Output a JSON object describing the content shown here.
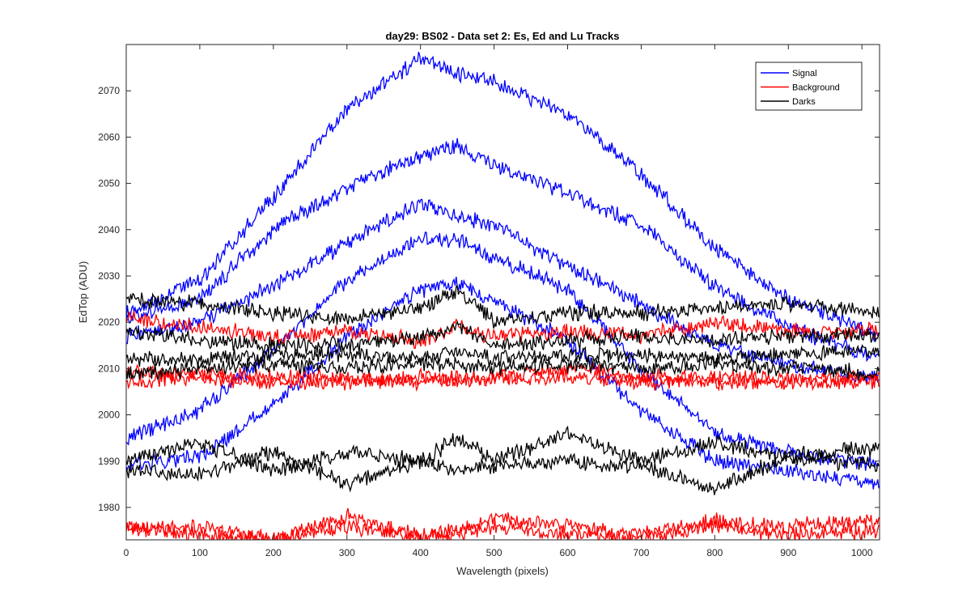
{
  "chart_data": {
    "type": "line",
    "title": "day29: BS02 - Data set 2: Es, Ed and Lu Tracks",
    "xlabel": "Wavelength (pixels)",
    "ylabel": "EdTop (ADU)",
    "xlim": [
      0,
      1024
    ],
    "ylim": [
      1973,
      2080
    ],
    "xticks": [
      0,
      100,
      200,
      300,
      400,
      500,
      600,
      700,
      800,
      900,
      1000
    ],
    "yticks": [
      1980,
      1990,
      2000,
      2010,
      2020,
      2030,
      2040,
      2050,
      2060,
      2070
    ],
    "grid": false,
    "legend_position": "top-right",
    "legend": [
      {
        "name": "Signal",
        "color": "#0000ff"
      },
      {
        "name": "Background",
        "color": "#ff0000"
      },
      {
        "name": "Darks",
        "color": "#000000"
      }
    ],
    "x": [
      0,
      100,
      200,
      300,
      400,
      450,
      500,
      600,
      700,
      800,
      900,
      1024
    ],
    "series": [
      {
        "group": "Signal",
        "color": "#0000ff",
        "values": [
          2022,
          2029,
          2047,
          2066,
          2077,
          2074,
          2072,
          2065,
          2052,
          2036,
          2025,
          2017
        ]
      },
      {
        "group": "Signal",
        "color": "#0000ff",
        "values": [
          2021,
          2025,
          2040,
          2049,
          2056,
          2058,
          2054,
          2048,
          2041,
          2028,
          2019,
          2012
        ]
      },
      {
        "group": "Signal",
        "color": "#0000ff",
        "values": [
          2017,
          2020,
          2028,
          2037,
          2046,
          2043,
          2041,
          2032,
          2024,
          2015,
          2011,
          2008
        ]
      },
      {
        "group": "Signal",
        "color": "#0000ff",
        "values": [
          1995,
          2001,
          2014,
          2029,
          2038,
          2038,
          2034,
          2027,
          2010,
          1996,
          1992,
          1989
        ]
      },
      {
        "group": "Signal",
        "color": "#0000ff",
        "values": [
          1989,
          1991,
          2002,
          2017,
          2027,
          2028,
          2025,
          2016,
          2001,
          1990,
          1988,
          1985
        ]
      },
      {
        "group": "Background",
        "color": "#ff0000",
        "values": [
          2021,
          2019,
          2017,
          2018,
          2016,
          2019,
          2017,
          2018,
          2017,
          2020,
          2018,
          2018
        ]
      },
      {
        "group": "Background",
        "color": "#ff0000",
        "values": [
          2009,
          2009,
          2008,
          2008,
          2007,
          2008,
          2008,
          2010,
          2008,
          2008,
          2008,
          2008
        ]
      },
      {
        "group": "Background",
        "color": "#ff0000",
        "values": [
          2007,
          2008,
          2007,
          2007,
          2008,
          2007,
          2008,
          2008,
          2007,
          2007,
          2007,
          2007
        ]
      },
      {
        "group": "Background",
        "color": "#ff0000",
        "values": [
          1976,
          1974,
          1973,
          1978,
          1974,
          1975,
          1978,
          1976,
          1974,
          1977,
          1976,
          1977
        ]
      },
      {
        "group": "Background",
        "color": "#ff0000",
        "values": [
          1975,
          1976,
          1973,
          1976,
          1973,
          1974,
          1976,
          1974,
          1973,
          1976,
          1974,
          1975
        ]
      },
      {
        "group": "Darks",
        "color": "#000000",
        "values": [
          2025,
          2024,
          2022,
          2021,
          2023,
          2027,
          2020,
          2022,
          2022,
          2023,
          2024,
          2022
        ]
      },
      {
        "group": "Darks",
        "color": "#000000",
        "values": [
          2018,
          2016,
          2015,
          2015,
          2017,
          2019,
          2015,
          2016,
          2017,
          2016,
          2017,
          2017
        ]
      },
      {
        "group": "Darks",
        "color": "#000000",
        "values": [
          2012,
          2012,
          2013,
          2013,
          2012,
          2014,
          2012,
          2013,
          2013,
          2012,
          2013,
          2014
        ]
      },
      {
        "group": "Darks",
        "color": "#000000",
        "values": [
          2009,
          2010,
          2011,
          2010,
          2011,
          2011,
          2010,
          2011,
          2010,
          2011,
          2010,
          2009
        ]
      },
      {
        "group": "Darks",
        "color": "#000000",
        "values": [
          1990,
          1994,
          1988,
          1992,
          1990,
          1995,
          1990,
          1996,
          1990,
          1994,
          1991,
          1993
        ]
      },
      {
        "group": "Darks",
        "color": "#000000",
        "values": [
          1988,
          1987,
          1992,
          1985,
          1990,
          1988,
          1989,
          1990,
          1989,
          1984,
          1991,
          1989
        ]
      }
    ]
  }
}
